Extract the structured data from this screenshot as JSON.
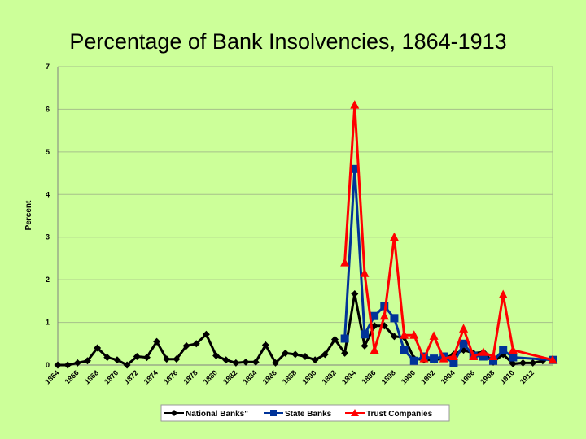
{
  "chart_data": {
    "type": "line",
    "title": "Percentage of Bank Insolvencies, 1864-1913",
    "xlabel": "",
    "ylabel": "Percent",
    "ylim": [
      0,
      7
    ],
    "yticks": [
      "0",
      "1",
      "2",
      "3",
      "4",
      "5",
      "6",
      "7"
    ],
    "xlim": [
      1864,
      1914
    ],
    "xtick_years": [
      1864,
      1866,
      1868,
      1870,
      1872,
      1874,
      1876,
      1878,
      1880,
      1882,
      1884,
      1886,
      1888,
      1890,
      1892,
      1894,
      1896,
      1898,
      1900,
      1902,
      1904,
      1906,
      1908,
      1910,
      1912
    ],
    "xticks": [
      "1864",
      "1866",
      "1868",
      "1870",
      "1872",
      "1874",
      "1876",
      "1878",
      "1880",
      "1882",
      "1884",
      "1886",
      "1888",
      "1890",
      "1892",
      "1894",
      "1896",
      "1898",
      "1900",
      "1902",
      "1904",
      "1906",
      "1908",
      "1910",
      "1912"
    ],
    "grid": true,
    "legend_position": "bottom",
    "series": [
      {
        "name": "National Banks\"",
        "color": "#000000",
        "marker": "diamond",
        "x": [
          1864,
          1865,
          1866,
          1867,
          1868,
          1869,
          1870,
          1871,
          1872,
          1873,
          1874,
          1875,
          1876,
          1877,
          1878,
          1879,
          1880,
          1881,
          1882,
          1883,
          1884,
          1885,
          1886,
          1887,
          1888,
          1889,
          1890,
          1891,
          1892,
          1893,
          1894,
          1895,
          1896,
          1897,
          1898,
          1899,
          1900,
          1901,
          1902,
          1903,
          1904,
          1905,
          1906,
          1907,
          1908,
          1909,
          1910,
          1911,
          1912,
          1913
        ],
        "values": [
          0.0,
          0.0,
          0.05,
          0.1,
          0.4,
          0.18,
          0.12,
          0.0,
          0.2,
          0.18,
          0.55,
          0.14,
          0.14,
          0.45,
          0.5,
          0.72,
          0.22,
          0.12,
          0.05,
          0.07,
          0.07,
          0.47,
          0.05,
          0.28,
          0.25,
          0.2,
          0.12,
          0.25,
          0.6,
          0.28,
          1.67,
          0.45,
          0.92,
          0.92,
          0.67,
          0.65,
          0.15,
          0.12,
          0.12,
          0.15,
          0.25,
          0.35,
          0.28,
          0.3,
          0.07,
          0.25,
          0.03,
          0.05,
          0.05,
          0.1
        ]
      },
      {
        "name": "State Banks",
        "color": "#003399",
        "marker": "square",
        "x": [
          1893,
          1894,
          1895,
          1896,
          1897,
          1898,
          1899,
          1900,
          1901,
          1902,
          1903,
          1904,
          1905,
          1906,
          1907,
          1908,
          1909,
          1910,
          1914
        ],
        "values": [
          0.62,
          4.6,
          0.72,
          1.15,
          1.38,
          1.1,
          0.35,
          0.1,
          0.2,
          0.15,
          0.2,
          0.05,
          0.5,
          0.22,
          0.2,
          0.1,
          0.35,
          0.18,
          0.12
        ]
      },
      {
        "name": "Trust Companies",
        "color": "#ff0000",
        "marker": "triangle",
        "x": [
          1893,
          1894,
          1895,
          1896,
          1897,
          1898,
          1899,
          1900,
          1901,
          1902,
          1903,
          1904,
          1905,
          1906,
          1907,
          1908,
          1909,
          1910,
          1914
        ],
        "values": [
          2.4,
          6.1,
          2.15,
          0.35,
          1.15,
          3.0,
          0.7,
          0.7,
          0.15,
          0.68,
          0.15,
          0.2,
          0.85,
          0.2,
          0.3,
          0.2,
          1.65,
          0.35,
          0.12
        ]
      }
    ]
  }
}
